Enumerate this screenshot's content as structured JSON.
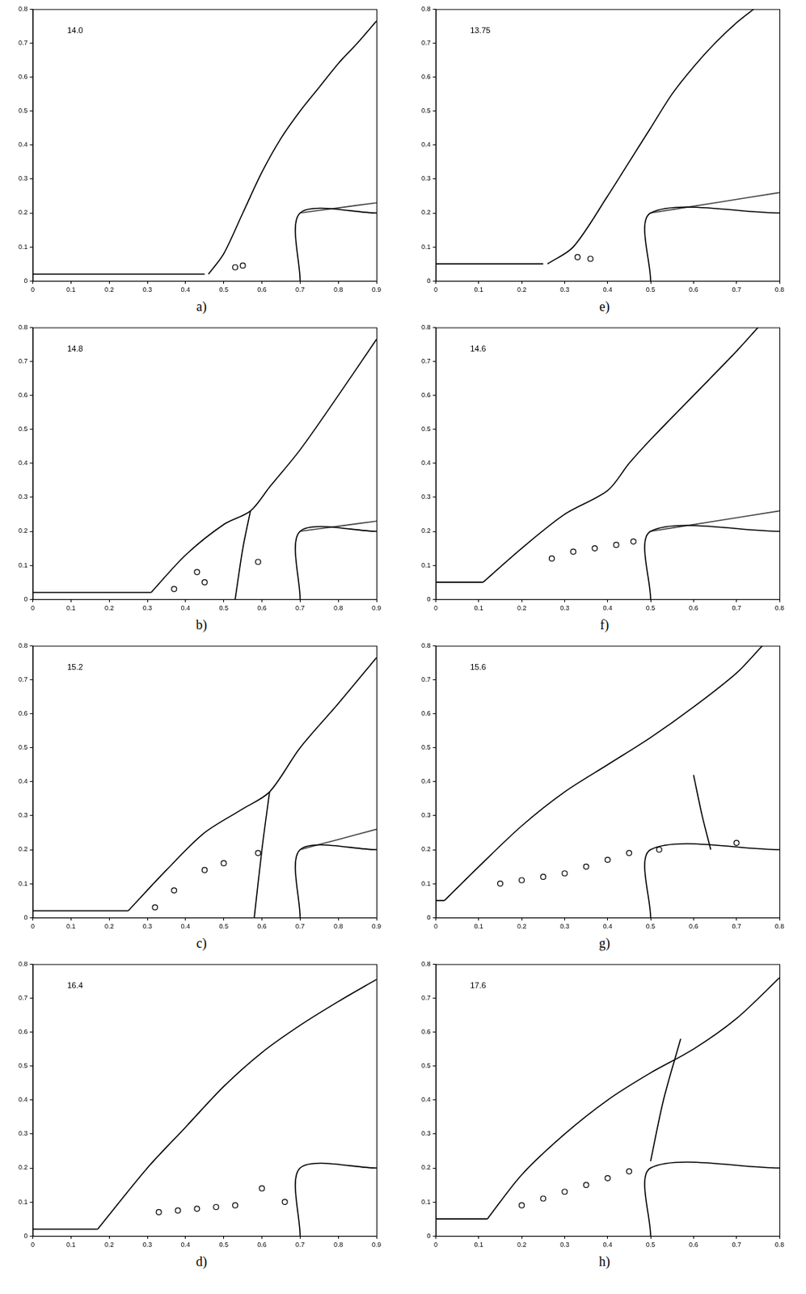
{
  "chart_data": [
    {
      "type": "line",
      "caption": "a)",
      "annotations": [
        "14.0"
      ],
      "xlim": [
        0,
        0.9
      ],
      "ylim": [
        0,
        0.8
      ],
      "xticks": [
        0,
        0.1,
        0.2,
        0.3,
        0.4,
        0.5,
        0.6,
        0.7,
        0.8,
        0.9
      ],
      "yticks": [
        0,
        0.1,
        0.2,
        0.3,
        0.4,
        0.5,
        0.6,
        0.7,
        0.8
      ],
      "grid": false,
      "series": [
        {
          "color": "#000000",
          "line_style": "solid",
          "marker": "none",
          "x": [
            0,
            0.45
          ],
          "values": [
            0.02,
            0.02
          ]
        },
        {
          "color": "#000000",
          "line_style": "solid",
          "marker": "none",
          "x": [
            0.46,
            0.5,
            0.55,
            0.6,
            0.65,
            0.7,
            0.75,
            0.8,
            0.85,
            0.9
          ],
          "values": [
            0.02,
            0.08,
            0.2,
            0.32,
            0.42,
            0.5,
            0.57,
            0.64,
            0.7,
            0.765
          ]
        },
        {
          "color": "#000000",
          "line_style": "solid",
          "marker": "none",
          "x": [
            0.7,
            0.7,
            0.9
          ],
          "values": [
            0,
            0.2,
            0.2
          ]
        },
        {
          "color": "#444444",
          "line_style": "solid",
          "marker": "none",
          "x": [
            0.7,
            0.8,
            0.9
          ],
          "values": [
            0.2,
            0.215,
            0.23
          ]
        },
        {
          "color": "#000000",
          "line_style": "none",
          "marker": "circle",
          "x": [
            0.53,
            0.55
          ],
          "values": [
            0.04,
            0.045
          ]
        }
      ]
    },
    {
      "type": "line",
      "caption": "b)",
      "annotations": [
        "14.8"
      ],
      "xlim": [
        0,
        0.9
      ],
      "ylim": [
        0,
        0.8
      ],
      "xticks": [
        0,
        0.1,
        0.2,
        0.3,
        0.4,
        0.5,
        0.6,
        0.7,
        0.8,
        0.9
      ],
      "yticks": [
        0,
        0.1,
        0.2,
        0.3,
        0.4,
        0.5,
        0.6,
        0.7,
        0.8
      ],
      "grid": false,
      "series": [
        {
          "color": "#000000",
          "line_style": "solid",
          "marker": "none",
          "x": [
            0,
            0.31
          ],
          "values": [
            0.02,
            0.02
          ]
        },
        {
          "color": "#000000",
          "line_style": "solid",
          "marker": "none",
          "x": [
            0.31,
            0.4,
            0.5,
            0.57,
            0.62,
            0.7,
            0.8,
            0.9
          ],
          "values": [
            0.02,
            0.13,
            0.22,
            0.26,
            0.33,
            0.44,
            0.6,
            0.765
          ]
        },
        {
          "color": "#000000",
          "line_style": "solid",
          "marker": "none",
          "x": [
            0.7,
            0.7,
            0.9
          ],
          "values": [
            0,
            0.2,
            0.2
          ]
        },
        {
          "color": "#444444",
          "line_style": "solid",
          "marker": "none",
          "x": [
            0.7,
            0.8,
            0.9
          ],
          "values": [
            0.2,
            0.215,
            0.23
          ]
        },
        {
          "color": "#000000",
          "line_style": "solid",
          "marker": "none",
          "x": [
            0.57,
            0.55,
            0.53
          ],
          "values": [
            0.26,
            0.15,
            0.0
          ]
        },
        {
          "color": "#000000",
          "line_style": "none",
          "marker": "circle",
          "x": [
            0.37,
            0.43,
            0.45,
            0.59
          ],
          "values": [
            0.03,
            0.08,
            0.05,
            0.11
          ]
        }
      ]
    },
    {
      "type": "line",
      "caption": "c)",
      "annotations": [
        "15.2"
      ],
      "xlim": [
        0,
        0.9
      ],
      "ylim": [
        0,
        0.8
      ],
      "xticks": [
        0,
        0.1,
        0.2,
        0.3,
        0.4,
        0.5,
        0.6,
        0.7,
        0.8,
        0.9
      ],
      "yticks": [
        0,
        0.1,
        0.2,
        0.3,
        0.4,
        0.5,
        0.6,
        0.7,
        0.8
      ],
      "grid": false,
      "series": [
        {
          "color": "#000000",
          "line_style": "solid",
          "marker": "none",
          "x": [
            0,
            0.25
          ],
          "values": [
            0.02,
            0.02
          ]
        },
        {
          "color": "#000000",
          "line_style": "solid",
          "marker": "none",
          "x": [
            0.25,
            0.35,
            0.45,
            0.55,
            0.62,
            0.7,
            0.8,
            0.9
          ],
          "values": [
            0.02,
            0.14,
            0.25,
            0.32,
            0.37,
            0.5,
            0.63,
            0.765
          ]
        },
        {
          "color": "#000000",
          "line_style": "solid",
          "marker": "none",
          "x": [
            0.7,
            0.7,
            0.9
          ],
          "values": [
            0,
            0.2,
            0.2
          ]
        },
        {
          "color": "#444444",
          "line_style": "solid",
          "marker": "none",
          "x": [
            0.7,
            0.8,
            0.9
          ],
          "values": [
            0.2,
            0.23,
            0.26
          ]
        },
        {
          "color": "#000000",
          "line_style": "solid",
          "marker": "none",
          "x": [
            0.62,
            0.6,
            0.58
          ],
          "values": [
            0.37,
            0.2,
            0.0
          ]
        },
        {
          "color": "#000000",
          "line_style": "none",
          "marker": "circle",
          "x": [
            0.32,
            0.37,
            0.45,
            0.5,
            0.59
          ],
          "values": [
            0.03,
            0.08,
            0.14,
            0.16,
            0.19
          ]
        }
      ]
    },
    {
      "type": "line",
      "caption": "d)",
      "annotations": [
        "16.4"
      ],
      "xlim": [
        0,
        0.9
      ],
      "ylim": [
        0,
        0.8
      ],
      "xticks": [
        0,
        0.1,
        0.2,
        0.3,
        0.4,
        0.5,
        0.6,
        0.7,
        0.8,
        0.9
      ],
      "yticks": [
        0,
        0.1,
        0.2,
        0.3,
        0.4,
        0.5,
        0.6,
        0.7,
        0.8
      ],
      "grid": false,
      "series": [
        {
          "color": "#000000",
          "line_style": "solid",
          "marker": "none",
          "x": [
            0,
            0.17
          ],
          "values": [
            0.02,
            0.02
          ]
        },
        {
          "color": "#000000",
          "line_style": "solid",
          "marker": "none",
          "x": [
            0.17,
            0.3,
            0.4,
            0.5,
            0.6,
            0.7,
            0.8,
            0.9
          ],
          "values": [
            0.02,
            0.2,
            0.32,
            0.44,
            0.54,
            0.62,
            0.69,
            0.755
          ]
        },
        {
          "color": "#000000",
          "line_style": "solid",
          "marker": "none",
          "x": [
            0.7,
            0.7,
            0.9
          ],
          "values": [
            0,
            0.2,
            0.2
          ]
        },
        {
          "color": "#000000",
          "line_style": "none",
          "marker": "circle",
          "x": [
            0.33,
            0.38,
            0.43,
            0.48,
            0.53,
            0.6,
            0.66
          ],
          "values": [
            0.07,
            0.075,
            0.08,
            0.085,
            0.09,
            0.14,
            0.1
          ]
        }
      ]
    },
    {
      "type": "line",
      "caption": "e)",
      "annotations": [
        "13.75"
      ],
      "xlim": [
        0,
        0.8
      ],
      "ylim": [
        0,
        0.8
      ],
      "xticks": [
        0,
        0.1,
        0.2,
        0.3,
        0.4,
        0.5,
        0.6,
        0.7,
        0.8
      ],
      "yticks": [
        0,
        0.1,
        0.2,
        0.3,
        0.4,
        0.5,
        0.6,
        0.7,
        0.8
      ],
      "grid": false,
      "series": [
        {
          "color": "#000000",
          "line_style": "solid",
          "marker": "none",
          "x": [
            0,
            0.25
          ],
          "values": [
            0.05,
            0.05
          ]
        },
        {
          "color": "#000000",
          "line_style": "solid",
          "marker": "none",
          "x": [
            0.26,
            0.32,
            0.4,
            0.45,
            0.5,
            0.55,
            0.6,
            0.65,
            0.7,
            0.74
          ],
          "values": [
            0.05,
            0.1,
            0.25,
            0.35,
            0.45,
            0.55,
            0.63,
            0.7,
            0.76,
            0.8
          ]
        },
        {
          "color": "#000000",
          "line_style": "solid",
          "marker": "none",
          "x": [
            0.5,
            0.5,
            0.8
          ],
          "values": [
            0,
            0.2,
            0.2
          ]
        },
        {
          "color": "#444444",
          "line_style": "solid",
          "marker": "none",
          "x": [
            0.5,
            0.65,
            0.8
          ],
          "values": [
            0.2,
            0.23,
            0.26
          ]
        },
        {
          "color": "#000000",
          "line_style": "none",
          "marker": "circle",
          "x": [
            0.33,
            0.36
          ],
          "values": [
            0.07,
            0.065
          ]
        }
      ]
    },
    {
      "type": "line",
      "caption": "f)",
      "annotations": [
        "14.6"
      ],
      "xlim": [
        0,
        0.8
      ],
      "ylim": [
        0,
        0.8
      ],
      "xticks": [
        0,
        0.1,
        0.2,
        0.3,
        0.4,
        0.5,
        0.6,
        0.7,
        0.8
      ],
      "yticks": [
        0,
        0.1,
        0.2,
        0.3,
        0.4,
        0.5,
        0.6,
        0.7,
        0.8
      ],
      "grid": false,
      "series": [
        {
          "color": "#000000",
          "line_style": "solid",
          "marker": "none",
          "x": [
            0,
            0.11
          ],
          "values": [
            0.05,
            0.05
          ]
        },
        {
          "color": "#000000",
          "line_style": "solid",
          "marker": "none",
          "x": [
            0.11,
            0.2,
            0.3,
            0.4,
            0.45,
            0.5,
            0.6,
            0.7,
            0.75
          ],
          "values": [
            0.05,
            0.15,
            0.25,
            0.32,
            0.4,
            0.47,
            0.6,
            0.73,
            0.8
          ]
        },
        {
          "color": "#000000",
          "line_style": "solid",
          "marker": "none",
          "x": [
            0.5,
            0.5,
            0.8
          ],
          "values": [
            0,
            0.2,
            0.2
          ]
        },
        {
          "color": "#444444",
          "line_style": "solid",
          "marker": "none",
          "x": [
            0.5,
            0.65,
            0.8
          ],
          "values": [
            0.2,
            0.23,
            0.26
          ]
        },
        {
          "color": "#000000",
          "line_style": "none",
          "marker": "circle",
          "x": [
            0.27,
            0.32,
            0.37,
            0.42,
            0.46
          ],
          "values": [
            0.12,
            0.14,
            0.15,
            0.16,
            0.17
          ]
        }
      ]
    },
    {
      "type": "line",
      "caption": "g)",
      "annotations": [
        "15.6"
      ],
      "xlim": [
        0,
        0.8
      ],
      "ylim": [
        0,
        0.8
      ],
      "xticks": [
        0,
        0.1,
        0.2,
        0.3,
        0.4,
        0.5,
        0.6,
        0.7,
        0.8
      ],
      "yticks": [
        0,
        0.1,
        0.2,
        0.3,
        0.4,
        0.5,
        0.6,
        0.7,
        0.8
      ],
      "grid": false,
      "series": [
        {
          "color": "#000000",
          "line_style": "solid",
          "marker": "none",
          "x": [
            0,
            0.02
          ],
          "values": [
            0.05,
            0.05
          ]
        },
        {
          "color": "#000000",
          "line_style": "solid",
          "marker": "none",
          "x": [
            0.02,
            0.1,
            0.2,
            0.3,
            0.4,
            0.5,
            0.6,
            0.7,
            0.76
          ],
          "values": [
            0.05,
            0.15,
            0.27,
            0.37,
            0.45,
            0.53,
            0.62,
            0.72,
            0.8
          ]
        },
        {
          "color": "#000000",
          "line_style": "solid",
          "marker": "none",
          "x": [
            0.5,
            0.5,
            0.8
          ],
          "values": [
            0,
            0.2,
            0.2
          ]
        },
        {
          "color": "#000000",
          "line_style": "solid",
          "marker": "none",
          "x": [
            0.6,
            0.62,
            0.64
          ],
          "values": [
            0.42,
            0.3,
            0.2
          ]
        },
        {
          "color": "#000000",
          "line_style": "none",
          "marker": "circle",
          "x": [
            0.15,
            0.2,
            0.25,
            0.3,
            0.35,
            0.4,
            0.45,
            0.52,
            0.7
          ],
          "values": [
            0.1,
            0.11,
            0.12,
            0.13,
            0.15,
            0.17,
            0.19,
            0.2,
            0.22
          ]
        }
      ]
    },
    {
      "type": "line",
      "caption": "h)",
      "annotations": [
        "17.6"
      ],
      "xlim": [
        0,
        0.8
      ],
      "ylim": [
        0,
        0.8
      ],
      "xticks": [
        0,
        0.1,
        0.2,
        0.3,
        0.4,
        0.5,
        0.6,
        0.7,
        0.8
      ],
      "yticks": [
        0,
        0.1,
        0.2,
        0.3,
        0.4,
        0.5,
        0.6,
        0.7,
        0.8
      ],
      "grid": false,
      "series": [
        {
          "color": "#000000",
          "line_style": "solid",
          "marker": "none",
          "x": [
            0,
            0.12
          ],
          "values": [
            0.05,
            0.05
          ]
        },
        {
          "color": "#000000",
          "line_style": "solid",
          "marker": "none",
          "x": [
            0.12,
            0.2,
            0.3,
            0.4,
            0.5,
            0.6,
            0.7,
            0.8
          ],
          "values": [
            0.05,
            0.18,
            0.3,
            0.4,
            0.48,
            0.55,
            0.64,
            0.76
          ]
        },
        {
          "color": "#000000",
          "line_style": "solid",
          "marker": "none",
          "x": [
            0.5,
            0.5,
            0.8
          ],
          "values": [
            0,
            0.2,
            0.2
          ]
        },
        {
          "color": "#000000",
          "line_style": "solid",
          "marker": "none",
          "x": [
            0.57,
            0.53,
            0.5
          ],
          "values": [
            0.58,
            0.4,
            0.22
          ]
        },
        {
          "color": "#000000",
          "line_style": "none",
          "marker": "circle",
          "x": [
            0.2,
            0.25,
            0.3,
            0.35,
            0.4,
            0.45
          ],
          "values": [
            0.09,
            0.11,
            0.13,
            0.15,
            0.17,
            0.19
          ]
        }
      ]
    }
  ]
}
